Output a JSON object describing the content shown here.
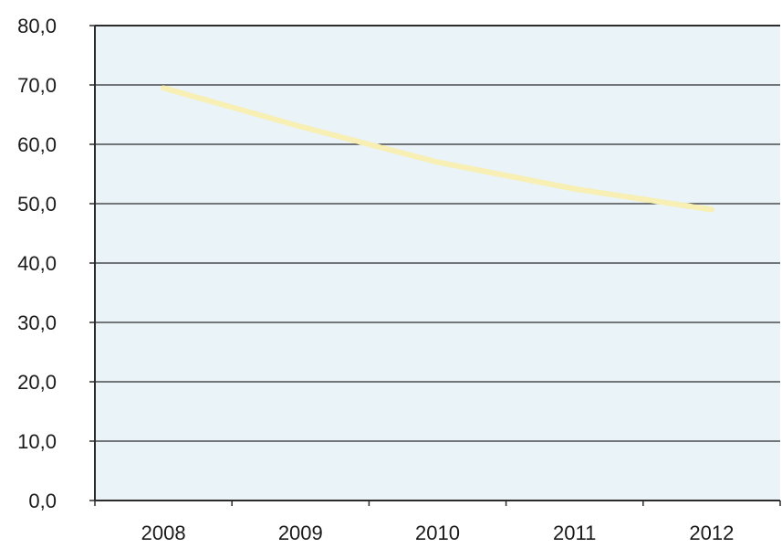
{
  "chart_data": {
    "type": "line",
    "title": "",
    "xlabel": "",
    "ylabel": "",
    "categories": [
      "2008",
      "2009",
      "2010",
      "2011",
      "2012"
    ],
    "y_tick_labels": [
      "0,0",
      "10,0",
      "20,0",
      "30,0",
      "40,0",
      "50,0",
      "60,0",
      "70,0",
      "80,0"
    ],
    "ylim": [
      0,
      80
    ],
    "grid": true,
    "legend": "none",
    "series": [
      {
        "values": [
          69.5,
          63.0,
          57.0,
          52.5,
          49.0
        ]
      }
    ]
  },
  "colors": {
    "plot_background": "#eaf3f8",
    "gridline": "#2b2b2b",
    "series_line": "#f7efb4",
    "axis": "#2b2b2b"
  }
}
